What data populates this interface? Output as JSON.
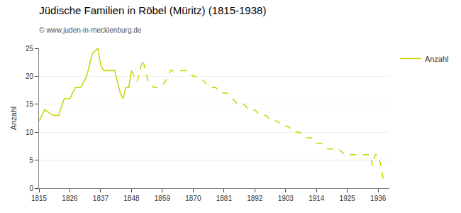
{
  "chart_data": {
    "type": "line",
    "title": "Jüdische Familien in Röbel (Müritz) (1815-1938)",
    "subtitle": "© www.juden-in-mecklenburg.de",
    "ylabel": "Anzahl",
    "xlim": [
      1815,
      1940
    ],
    "ylim": [
      0,
      25
    ],
    "xticks": [
      1815,
      1826,
      1837,
      1848,
      1859,
      1870,
      1881,
      1892,
      1903,
      1914,
      1925,
      1936
    ],
    "yticks": [
      0,
      5,
      10,
      15,
      20,
      25
    ],
    "grid": true,
    "legend": "upper right",
    "series": [
      {
        "name": "Anzahl",
        "color": "#c8d400",
        "line_style": "solid",
        "x": [
          1815,
          1817,
          1820,
          1822,
          1824,
          1826,
          1828,
          1830,
          1832,
          1834,
          1836,
          1837,
          1838,
          1840,
          1842,
          1844,
          1845,
          1846,
          1847,
          1848
        ],
        "values": [
          12,
          14,
          13,
          13,
          16,
          16,
          18,
          18,
          20,
          24,
          25,
          22,
          21,
          21,
          21,
          17,
          16,
          18,
          18,
          21
        ]
      },
      {
        "color": "#c8d400",
        "line_style": "dashed",
        "x": [
          1848,
          1850,
          1852,
          1854,
          1856,
          1858,
          1860,
          1862,
          1864,
          1866,
          1868,
          1870,
          1872,
          1874,
          1876,
          1878,
          1880,
          1882,
          1884,
          1886,
          1888,
          1890,
          1892,
          1894,
          1896,
          1898,
          1900,
          1902,
          1904,
          1906,
          1908,
          1910,
          1912,
          1914,
          1916,
          1918,
          1920,
          1922,
          1924,
          1926,
          1928,
          1930,
          1932,
          1933,
          1934,
          1935,
          1936,
          1937,
          1938
        ],
        "values": [
          21,
          19,
          23,
          19,
          18,
          18,
          19,
          21,
          21,
          21,
          21,
          20,
          20,
          19,
          18,
          18,
          17,
          17,
          16,
          15,
          15,
          14,
          14,
          13,
          13,
          12,
          12,
          11,
          11,
          10,
          10,
          9,
          9,
          8,
          8,
          7,
          7,
          7,
          6,
          6,
          6,
          6,
          6,
          6,
          4,
          6,
          6,
          4,
          1
        ]
      }
    ]
  }
}
